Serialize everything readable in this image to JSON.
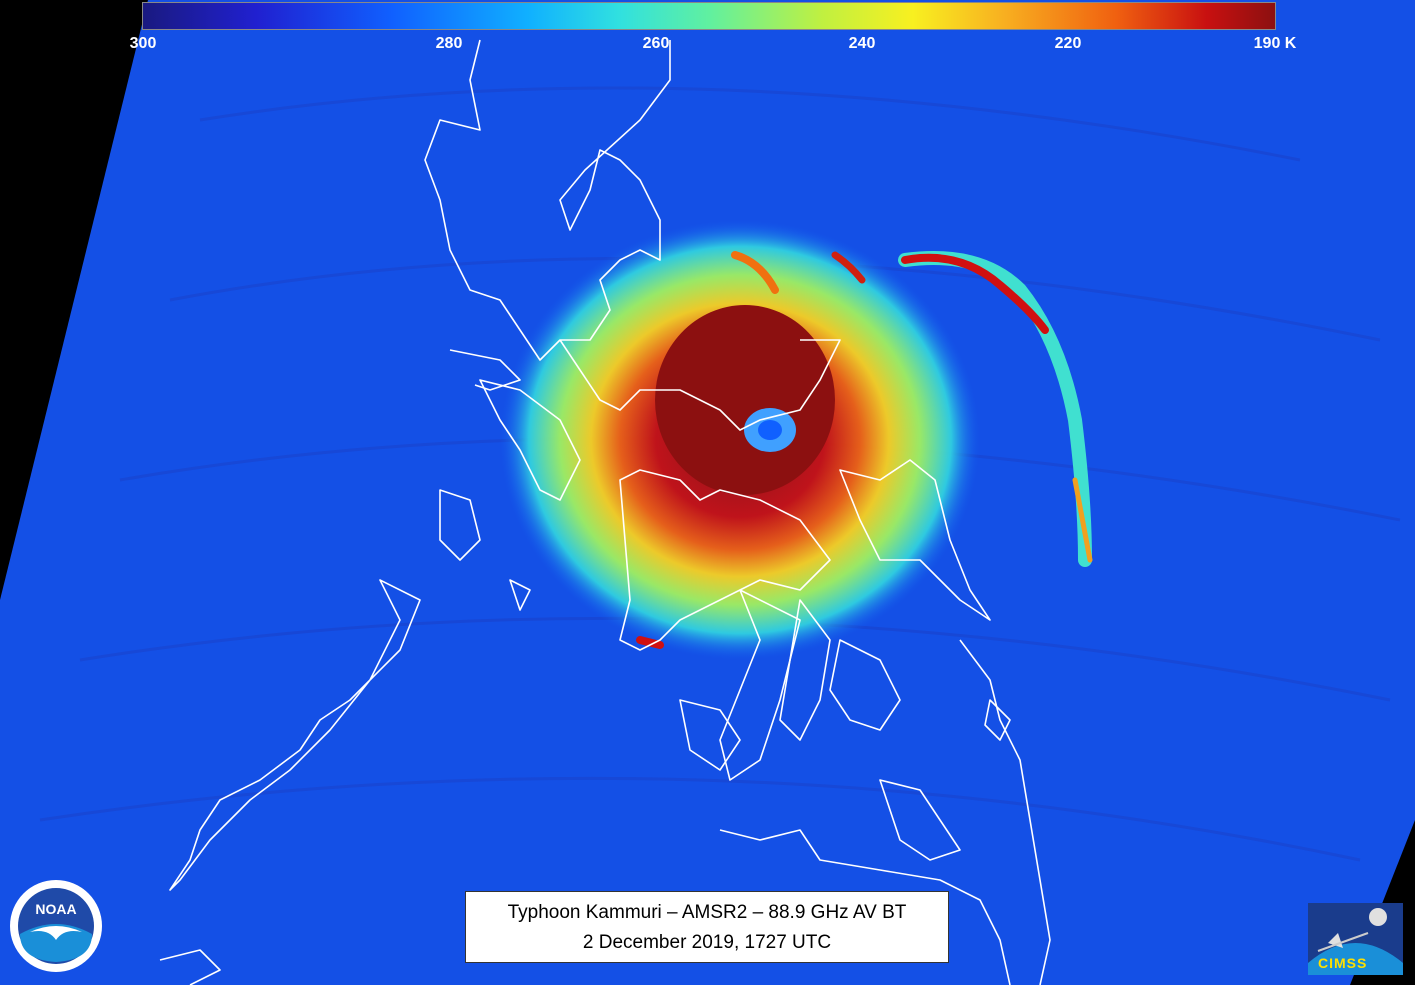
{
  "colorbar": {
    "ticks": [
      "300",
      "280",
      "260",
      "240",
      "220",
      "190 K"
    ]
  },
  "caption": {
    "line1": "Typhoon Kammuri – AMSR2 – 88.9 GHz AV BT",
    "line2": "2 December 2019, 1727 UTC"
  },
  "logos": {
    "noaa_text": "NOAA",
    "cimss_text": "CIMSS"
  },
  "colors": {
    "background_field": "#1450e6",
    "cold_core": "#8c1010",
    "coastline": "#ffffff"
  }
}
